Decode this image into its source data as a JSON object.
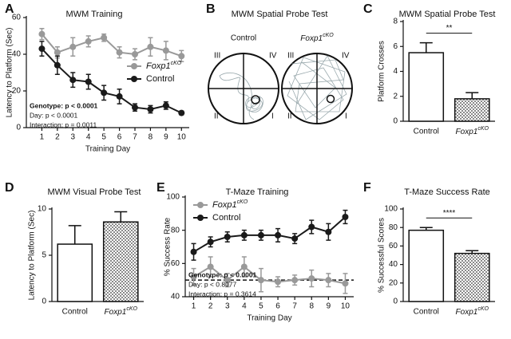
{
  "chart_data": [
    {
      "type": "line",
      "panel": "A",
      "title": "MWM Training",
      "xlabel": "Training Day",
      "ylabel": "Latency to Platform (Sec)",
      "x": [
        1,
        2,
        3,
        4,
        5,
        6,
        7,
        8,
        9,
        10
      ],
      "xlim": [
        0,
        10.5
      ],
      "xticks": [
        1,
        2,
        3,
        4,
        5,
        6,
        7,
        8,
        9,
        10
      ],
      "ylim": [
        0,
        60
      ],
      "yticks": [
        0,
        20,
        40,
        60
      ],
      "legend": "center right",
      "series": [
        {
          "name": "Foxp1cKO",
          "color": "#999999",
          "values": [
            51,
            41,
            44,
            47,
            49,
            41,
            40,
            44,
            42,
            39
          ],
          "errors": [
            3,
            3,
            5,
            3,
            2,
            3,
            3,
            5,
            5,
            3
          ]
        },
        {
          "name": "Control",
          "color": "#1a1a1a",
          "values": [
            43,
            34,
            26,
            25,
            19,
            17,
            11,
            10,
            12,
            8
          ],
          "errors": [
            4,
            5,
            4,
            4,
            4,
            4,
            2,
            2,
            2,
            1
          ]
        }
      ],
      "annotations": [
        "Genotype: p < 0.0001",
        "Day: p < 0.0001",
        "Interaction: p = 0.0011"
      ]
    },
    {
      "type": "bar",
      "panel": "C",
      "title": "MWM Spatial Probe Test",
      "ylabel": "Platform Crosses",
      "categories": [
        "Control",
        "Foxp1cKO"
      ],
      "values": [
        5.5,
        1.8
      ],
      "errors": [
        0.8,
        0.5
      ],
      "colors": [
        "#ffffff",
        "#8a8a8a"
      ],
      "ylim": [
        0,
        8
      ],
      "yticks": [
        0,
        2,
        4,
        6,
        8
      ],
      "significance": "**"
    },
    {
      "type": "bar",
      "panel": "D",
      "title": "MWM Visual Probe Test",
      "ylabel": "Latency to Platform (Sec)",
      "categories": [
        "Control",
        "Foxp1cKO"
      ],
      "values": [
        6.2,
        8.6
      ],
      "errors": [
        2.0,
        1.1
      ],
      "colors": [
        "#ffffff",
        "#8a8a8a"
      ],
      "ylim": [
        0,
        10
      ],
      "yticks": [
        0,
        5,
        10
      ]
    },
    {
      "type": "line",
      "panel": "E",
      "title": "T-Maze Training",
      "xlabel": "Training Day",
      "ylabel": "% Success Rate",
      "x": [
        1,
        2,
        3,
        4,
        5,
        6,
        7,
        8,
        9,
        10
      ],
      "xlim": [
        0.5,
        10.5
      ],
      "xticks": [
        1,
        2,
        3,
        4,
        5,
        6,
        7,
        8,
        9,
        10
      ],
      "ylim": [
        40,
        100
      ],
      "yticks": [
        40,
        60,
        80,
        100
      ],
      "legend": "upper left",
      "reference_line": 50,
      "series": [
        {
          "name": "Foxp1cKO",
          "color": "#999999",
          "values": [
            52,
            58,
            50,
            58,
            50,
            49,
            50,
            51,
            50,
            48
          ],
          "errors": [
            5,
            6,
            4,
            6,
            7,
            3,
            3,
            5,
            4,
            6
          ]
        },
        {
          "name": "Control",
          "color": "#1a1a1a",
          "values": [
            67,
            73,
            76,
            77,
            77,
            77,
            75,
            82,
            79,
            88
          ],
          "errors": [
            5,
            3,
            3,
            3,
            3,
            4,
            3,
            4,
            5,
            4
          ]
        }
      ],
      "annotations": [
        "Genotype: p < 0.0001",
        "Day: p < 0.8077",
        "Interaction: p = 0.3614"
      ]
    },
    {
      "type": "bar",
      "panel": "F",
      "title": "T-Maze Success Rate",
      "ylabel": "% Successful Scores",
      "categories": [
        "Control",
        "Foxp1cKO"
      ],
      "values": [
        77,
        52
      ],
      "errors": [
        3,
        3
      ],
      "colors": [
        "#ffffff",
        "#8a8a8a"
      ],
      "ylim": [
        0,
        100
      ],
      "yticks": [
        0,
        20,
        40,
        60,
        80,
        100
      ],
      "significance": "****"
    }
  ],
  "probe_test": {
    "panel": "B",
    "title": "MWM Spatial Probe Test",
    "mazes": [
      {
        "label": "Control",
        "quadrants": [
          "III",
          "IV",
          "II",
          "I"
        ]
      },
      {
        "label": "Foxp1cKO",
        "quadrants": [
          "III",
          "IV",
          "II",
          "I"
        ]
      }
    ]
  }
}
